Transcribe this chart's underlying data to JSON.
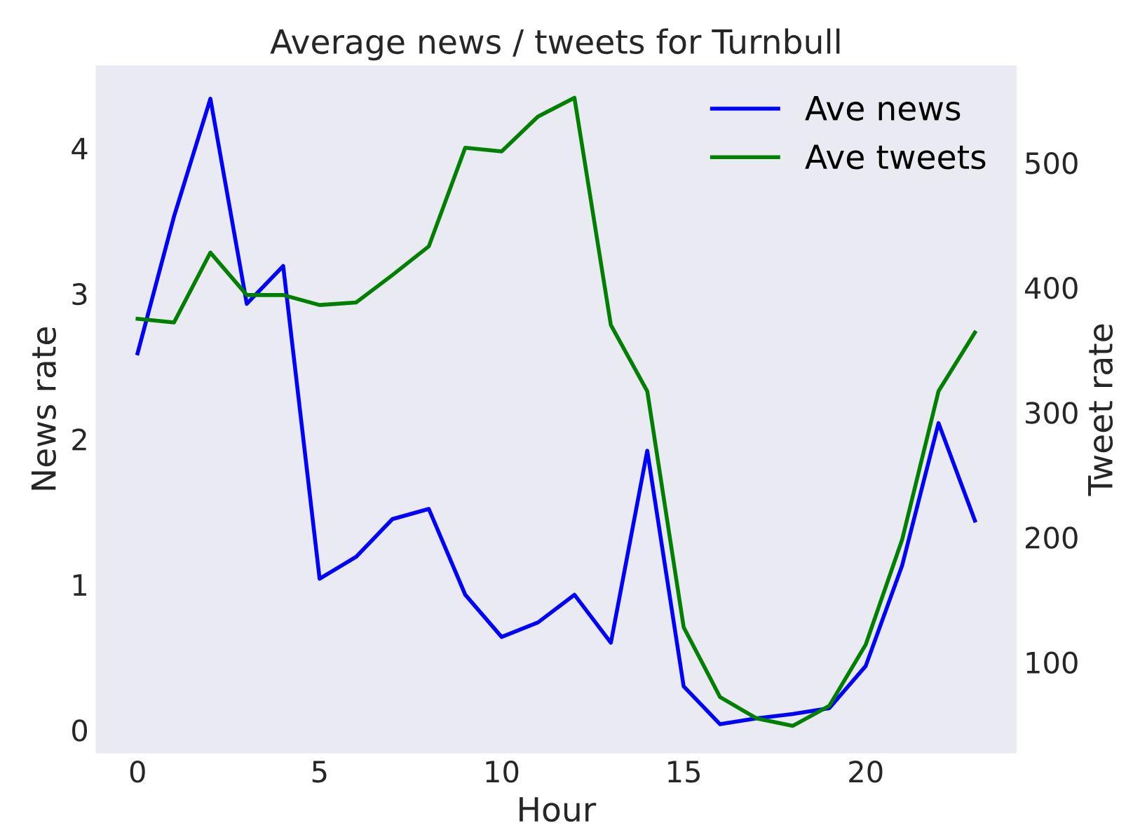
{
  "chart_data": {
    "type": "line",
    "title": "Average news / tweets for Turnbull",
    "xlabel": "Hour",
    "ylabel": "News rate",
    "y2label": "Tweet rate",
    "x": [
      0,
      1,
      2,
      3,
      4,
      5,
      6,
      7,
      8,
      9,
      10,
      11,
      12,
      13,
      14,
      15,
      16,
      17,
      18,
      19,
      20,
      21,
      22,
      23
    ],
    "series": [
      {
        "name": "Ave news",
        "color": "#0000ff",
        "values": [
          2.59,
          3.53,
          4.34,
          2.93,
          3.19,
          1.04,
          1.19,
          1.45,
          1.52,
          0.93,
          0.64,
          0.74,
          0.93,
          0.6,
          1.92,
          0.3,
          0.04,
          0.08,
          0.11,
          0.15,
          0.44,
          1.13,
          2.11,
          1.44
        ]
      },
      {
        "name": "Ave tweets",
        "color": "#008000",
        "axis": "y2",
        "values": [
          375,
          372,
          428,
          394,
          394,
          386,
          388,
          410,
          433,
          512,
          509,
          537,
          552,
          370,
          317,
          128,
          72,
          55,
          49,
          65,
          114,
          198,
          317,
          364
        ]
      }
    ],
    "xlim": [
      -1.15,
      24.15
    ],
    "xticks": [
      0,
      5,
      10,
      15,
      20
    ],
    "ylim": [
      -0.16,
      4.57
    ],
    "yticks": [
      0,
      1,
      2,
      3,
      4
    ],
    "y2lim": [
      27,
      578
    ],
    "y2ticks": [
      100,
      200,
      300,
      400,
      500
    ],
    "grid": false,
    "legend": "top right",
    "line_style": "solid",
    "marker": "none"
  }
}
